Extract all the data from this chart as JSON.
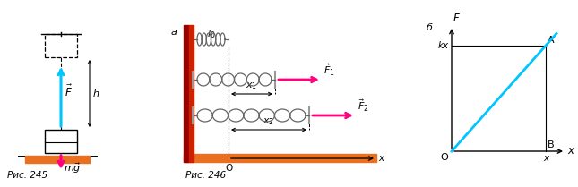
{
  "fig_width": 6.45,
  "fig_height": 2.09,
  "dpi": 100,
  "bg_color": "#ffffff",
  "cyan_color": "#00c5ff",
  "magenta_color": "#ff007f",
  "orange_color": "#e87020",
  "red_dark": "#990000",
  "red_light": "#cc2200",
  "gray_color": "#999999",
  "dark_color": "#333333",
  "caption1": "Рис. 245",
  "caption2": "Рис. 246",
  "label_a": "а",
  "label_b": "б"
}
